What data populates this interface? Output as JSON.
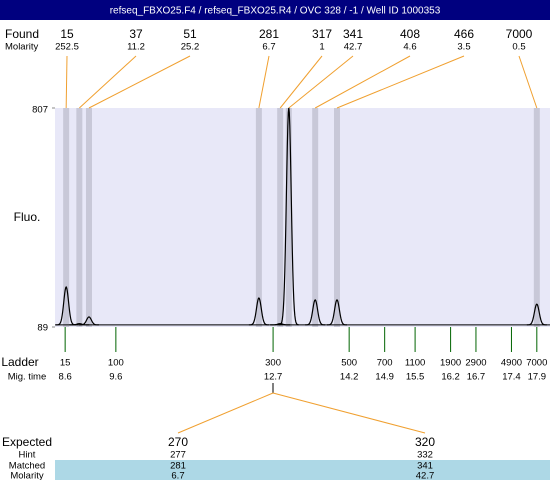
{
  "chart_data": {
    "type": "electropherogram",
    "title": "refseq_FBXO25.F4 / refseq_FBXO25.R4 / OVC 328 / -1 / Well ID 1000353",
    "found_label": "Found",
    "molarity_label": "Molarity",
    "y_label": "Fluo.",
    "ylim": [
      89,
      807
    ],
    "yticks": [
      89,
      807
    ],
    "xlim": [
      8.4,
      18.16
    ],
    "baseline": 96,
    "peaks": [
      {
        "size": 15,
        "molarity": 252.5,
        "time": 8.62,
        "height": 220
      },
      {
        "size": 37,
        "molarity": 11.2,
        "time": 8.88,
        "height": 100
      },
      {
        "size": 51,
        "molarity": 25.2,
        "time": 9.07,
        "height": 122
      },
      {
        "size": 281,
        "molarity": 6.7,
        "time": 12.42,
        "height": 184
      },
      {
        "size": 317,
        "molarity": 1,
        "time": 12.84,
        "height": 100
      },
      {
        "size": 341,
        "molarity": 42.7,
        "time": 13.01,
        "height": 807
      },
      {
        "size": 408,
        "molarity": 4.6,
        "time": 13.53,
        "height": 178
      },
      {
        "size": 466,
        "molarity": 3.5,
        "time": 13.96,
        "height": 178
      },
      {
        "size": 7000,
        "molarity": 0.5,
        "time": 17.9,
        "height": 164
      }
    ],
    "ladder_label": "Ladder",
    "time_label": "Mig. time",
    "ladder": [
      {
        "size": 15,
        "time": 8.6
      },
      {
        "size": 100,
        "time": 9.6
      },
      {
        "size": 300,
        "time": 12.7
      },
      {
        "size": 500,
        "time": 14.2
      },
      {
        "size": 700,
        "time": 14.9
      },
      {
        "size": 1100,
        "time": 15.5
      },
      {
        "size": 1900,
        "time": 16.2
      },
      {
        "size": 2900,
        "time": 16.7
      },
      {
        "size": 4900,
        "time": 17.4
      },
      {
        "size": 7000,
        "time": 17.9
      }
    ],
    "expected_label": "Expected",
    "hint_label": "Hint",
    "matched_label": "Matched",
    "matched_molarity_label": "Molarity",
    "expected": [
      {
        "size": 270,
        "hint": 277,
        "matched": 281,
        "molarity": 6.7
      },
      {
        "size": 320,
        "hint": 332,
        "matched": 341,
        "molarity": 42.7
      }
    ]
  }
}
